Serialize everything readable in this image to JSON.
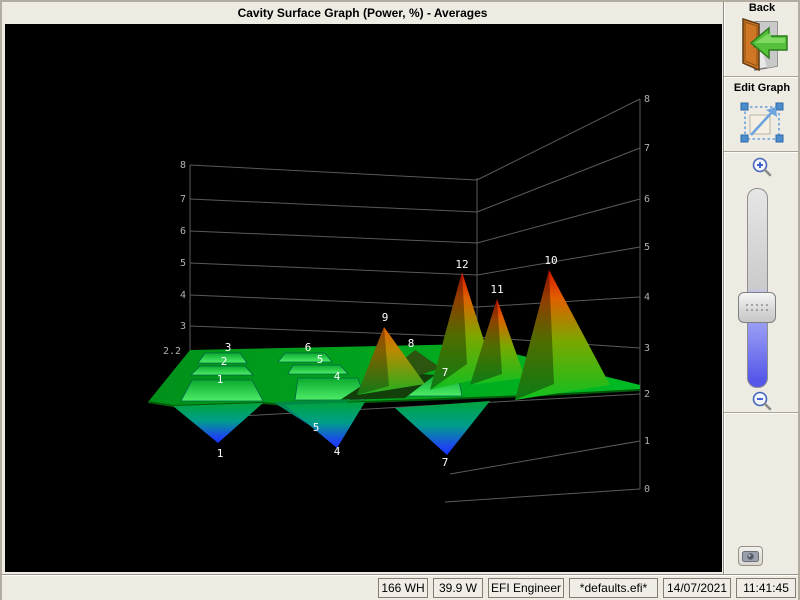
{
  "window": {
    "title": "Cavity Surface Graph (Power, %) - Averages"
  },
  "sidebar": {
    "back": {
      "label": "Back",
      "icon": "door-exit-icon"
    },
    "edit_graph": {
      "label": "Edit Graph",
      "icon": "selection-resize-icon"
    },
    "zoom": {
      "in_icon": "zoom-in-icon",
      "out_icon": "zoom-out-icon"
    },
    "snapshot": {
      "icon": "camera-icon"
    }
  },
  "status_bar": {
    "items": [
      "166 WH",
      "39.9 W",
      "EFI Engineer",
      "*defaults.efi*",
      "14/07/2021",
      "11:41:45"
    ]
  },
  "chart_data": {
    "type": "surface",
    "title": "Cavity Surface Graph (Power, %) - Averages",
    "background": "#000000",
    "unit": "Power %",
    "base_level": 2.2,
    "left_axis_ticks": [
      "8",
      "7",
      "6",
      "5",
      "4",
      "3"
    ],
    "left_axis_base_label": "2.2",
    "right_axis_ticks": [
      "8",
      "7",
      "6",
      "5",
      "4",
      "3",
      "2",
      "1",
      "0"
    ],
    "grid_on": true,
    "cavity_labels": [
      "1",
      "2",
      "3",
      "4",
      "5",
      "6",
      "7",
      "8",
      "9",
      "10",
      "11",
      "12"
    ],
    "cavity_values": [
      0.4,
      1.9,
      1.9,
      0.4,
      0.7,
      1.9,
      0.3,
      2.6,
      3.4,
      4.5,
      4.0,
      4.5
    ],
    "dip_tip_labels": [
      "1",
      "4",
      "5",
      "7"
    ],
    "colors": {
      "peak_high": "#d81500",
      "peak_mid": "#e06000",
      "surface_green": "#00a81e",
      "dip_low": "#1533ff",
      "axis_line": "#5a5a5a",
      "axis_text": "#b0b0b0"
    }
  }
}
